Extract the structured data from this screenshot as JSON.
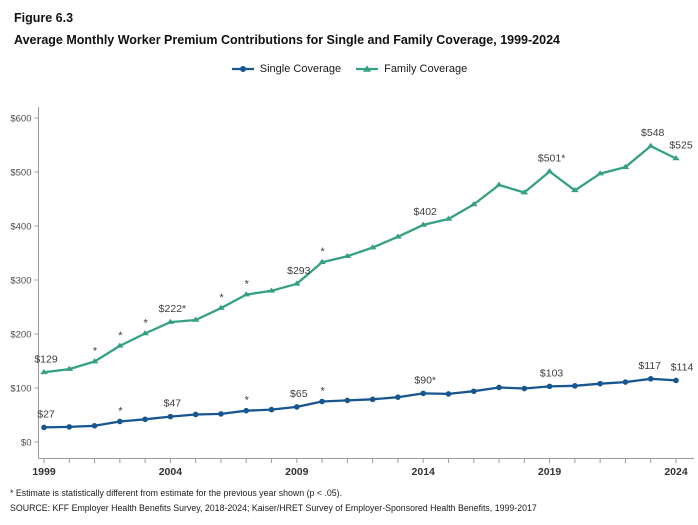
{
  "header": {
    "figure_label": "Figure 6.3",
    "title": "Average Monthly Worker Premium Contributions for Single and Family Coverage, 1999-2024"
  },
  "legend": {
    "items": [
      {
        "key": "single",
        "label": "Single Coverage"
      },
      {
        "key": "family",
        "label": "Family Coverage"
      }
    ]
  },
  "colors": {
    "single": "#17568e",
    "family": "#35a084",
    "axis_line": "#9b9b9b",
    "tick_label": "#4d4d4d",
    "year_label": "#333333",
    "data_label": "#3d3d3d"
  },
  "chart_data": {
    "type": "line",
    "title": "Average Monthly Worker Premium Contributions for Single and Family Coverage, 1999-2024",
    "x": [
      1999,
      2000,
      2001,
      2002,
      2003,
      2004,
      2005,
      2006,
      2007,
      2008,
      2009,
      2010,
      2011,
      2012,
      2013,
      2014,
      2015,
      2016,
      2017,
      2018,
      2019,
      2020,
      2021,
      2022,
      2023,
      2024
    ],
    "series": [
      {
        "name": "Single Coverage",
        "key": "single",
        "marker": "circle",
        "values": [
          27,
          28,
          30,
          38,
          42,
          47,
          51,
          52,
          58,
          60,
          65,
          75,
          77,
          79,
          83,
          90,
          89,
          94,
          101,
          99,
          103,
          104,
          108,
          111,
          117,
          114
        ]
      },
      {
        "name": "Family Coverage",
        "key": "family",
        "marker": "triangle",
        "values": [
          129,
          135,
          149,
          178,
          201,
          222,
          226,
          248,
          273,
          280,
          293,
          333,
          344,
          360,
          380,
          402,
          413,
          440,
          476,
          462,
          501,
          466,
          497,
          509,
          548,
          525
        ]
      }
    ],
    "point_labels": [
      {
        "series": "family",
        "year": 1999,
        "text": "$129"
      },
      {
        "series": "single",
        "year": 1999,
        "text": "$27"
      },
      {
        "series": "family",
        "year": 2004,
        "text": "$222*"
      },
      {
        "series": "single",
        "year": 2004,
        "text": "$47"
      },
      {
        "series": "family",
        "year": 2009,
        "text": "$293"
      },
      {
        "series": "single",
        "year": 2009,
        "text": "$65"
      },
      {
        "series": "family",
        "year": 2014,
        "text": "$402"
      },
      {
        "series": "single",
        "year": 2014,
        "text": "$90*"
      },
      {
        "series": "family",
        "year": 2019,
        "text": "$501*"
      },
      {
        "series": "single",
        "year": 2019,
        "text": "$103"
      },
      {
        "series": "family",
        "year": 2023,
        "text": "$548"
      },
      {
        "series": "family",
        "year": 2024,
        "text": "$525",
        "dx": 3
      },
      {
        "series": "single",
        "year": 2023,
        "text": "$117",
        "dx": -3
      },
      {
        "series": "single",
        "year": 2024,
        "text": "$114",
        "dx": 4
      }
    ],
    "asterisk_years": {
      "single": [
        2002,
        2007,
        2010
      ],
      "family": [
        2001,
        2002,
        2003,
        2006,
        2007,
        2010
      ]
    },
    "y_axis": {
      "ticks": [
        0,
        100,
        200,
        300,
        400,
        500,
        600
      ],
      "tick_prefix": "$",
      "min": 0,
      "max": 600
    },
    "x_axis": {
      "labeled_years": [
        1999,
        2004,
        2009,
        2014,
        2019,
        2024
      ]
    },
    "grid": false,
    "legend_position": "top"
  },
  "footnotes": {
    "note": "* Estimate is statistically different from estimate for the previous year shown (p < .05).",
    "source": "SOURCE: KFF Employer Health Benefits Survey, 2018-2024; Kaiser/HRET Survey of Employer-Sponsored Health Benefits, 1999-2017"
  }
}
